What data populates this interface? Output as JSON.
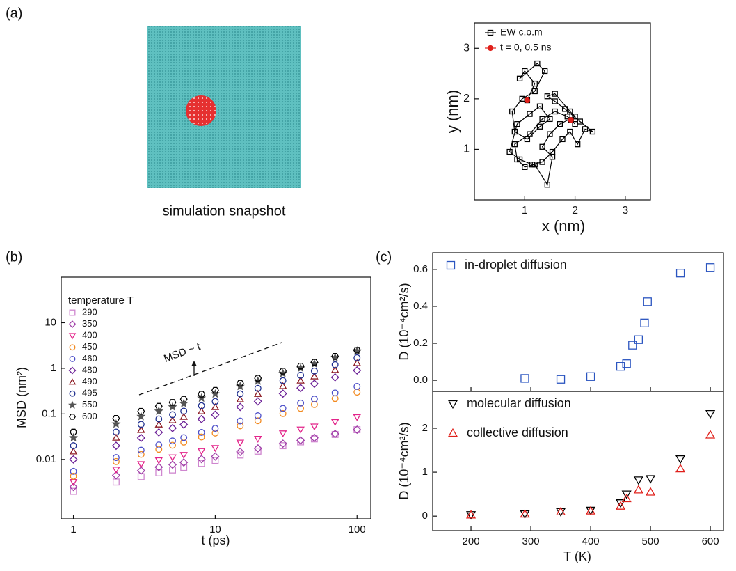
{
  "panel_labels": {
    "a": "(a)",
    "b": "(b)",
    "c": "(c)"
  },
  "snapshot_caption": "simulation snapshot",
  "chart_data": [
    {
      "type": "line",
      "xlabel": "x (nm)",
      "ylabel": "y (nm)",
      "xlim": [
        0,
        3.5
      ],
      "ylim": [
        0,
        3.5
      ],
      "xticks": [
        1,
        2,
        3
      ],
      "yticks": [
        1,
        2,
        3
      ],
      "series": [
        {
          "name": "EW c.o.m",
          "color": "#000000",
          "marker": "square",
          "line": true,
          "x": [
            1.05,
            1.2,
            1.0,
            0.9,
            1.25,
            1.4,
            1.2,
            0.95,
            0.75,
            0.8,
            1.05,
            1.3,
            1.5,
            1.3,
            1.1,
            0.85,
            0.7,
            0.9,
            1.15,
            1.35,
            1.55,
            1.75,
            1.9,
            2.05,
            2.2,
            2.35,
            2.1,
            1.8,
            1.6,
            1.45,
            1.6,
            1.9,
            2.0,
            1.7,
            1.5,
            1.35,
            1.55,
            1.45,
            1.2,
            1.0,
            0.85,
            0.8,
            1.1,
            1.35,
            1.6,
            1.85,
            2.0,
            1.92
          ],
          "values": [
            1.97,
            2.3,
            2.55,
            2.4,
            2.7,
            2.55,
            2.15,
            2.0,
            1.75,
            1.35,
            1.2,
            1.45,
            1.6,
            1.85,
            1.7,
            1.5,
            0.95,
            0.8,
            0.7,
            0.75,
            0.95,
            1.2,
            1.35,
            1.1,
            1.4,
            1.35,
            1.55,
            1.8,
            1.95,
            2.05,
            2.1,
            1.75,
            1.65,
            1.5,
            1.3,
            1.05,
            0.85,
            0.3,
            0.7,
            0.65,
            0.8,
            1.1,
            1.3,
            1.6,
            1.75,
            1.65,
            1.5,
            1.58
          ]
        },
        {
          "name": "t = 0, 0.5 ns",
          "color": "#e0201b",
          "marker": "dot",
          "line": false,
          "x": [
            1.05,
            1.92
          ],
          "values": [
            1.97,
            1.58
          ]
        }
      ]
    },
    {
      "type": "scatter",
      "xlabel": "t (ps)",
      "ylabel": "MSD (nm²)",
      "log_x": true,
      "log_y": true,
      "legend_title": "temperature T",
      "annotation": "MSD ~ t",
      "xlim": [
        0.82,
        125
      ],
      "ylim": [
        0.0005,
        100
      ],
      "xticks": [
        1,
        10,
        100
      ],
      "yticks": [
        0.01,
        0.1,
        1,
        10
      ],
      "x": [
        1,
        2,
        3,
        4,
        5,
        6,
        8,
        10,
        15,
        20,
        30,
        40,
        50,
        70,
        100
      ],
      "series": [
        {
          "name": "290",
          "color": "#cf86cf",
          "marker": "square",
          "values": [
            0.002,
            0.0032,
            0.0042,
            0.0051,
            0.0059,
            0.0067,
            0.0082,
            0.0095,
            0.0125,
            0.0152,
            0.02,
            0.0243,
            0.0282,
            0.0354,
            0.045
          ]
        },
        {
          "name": "350",
          "color": "#a040a8",
          "marker": "diamond",
          "values": [
            0.0025,
            0.0045,
            0.0057,
            0.0068,
            0.0077,
            0.0086,
            0.0102,
            0.0116,
            0.0147,
            0.0175,
            0.0222,
            0.0262,
            0.0299,
            0.0365,
            0.045
          ]
        },
        {
          "name": "400",
          "color": "#e3248a",
          "marker": "triangle-down",
          "values": [
            0.0032,
            0.006,
            0.0079,
            0.0096,
            0.0111,
            0.0126,
            0.0153,
            0.0178,
            0.0234,
            0.0284,
            0.0374,
            0.0455,
            0.0528,
            0.0664,
            0.085
          ]
        },
        {
          "name": "450",
          "color": "#f28a20",
          "marker": "circle",
          "values": [
            0.0043,
            0.009,
            0.0129,
            0.0167,
            0.0205,
            0.024,
            0.0311,
            0.038,
            0.0547,
            0.0708,
            0.102,
            0.132,
            0.161,
            0.217,
            0.3
          ]
        },
        {
          "name": "460",
          "color": "#4d4fc9",
          "marker": "circle",
          "values": [
            0.0055,
            0.011,
            0.016,
            0.0208,
            0.0255,
            0.0301,
            0.0393,
            0.0482,
            0.07,
            0.0912,
            0.132,
            0.173,
            0.212,
            0.288,
            0.4
          ]
        },
        {
          "name": "480",
          "color": "#6b1f96",
          "marker": "diamond",
          "values": [
            0.01,
            0.02,
            0.0297,
            0.0393,
            0.0488,
            0.0582,
            0.0771,
            0.0957,
            0.142,
            0.188,
            0.279,
            0.369,
            0.458,
            0.635,
            0.9
          ]
        },
        {
          "name": "490",
          "color": "#8c1a22",
          "marker": "triangle-up",
          "values": [
            0.015,
            0.03,
            0.0444,
            0.0585,
            0.0724,
            0.0863,
            0.114,
            0.141,
            0.209,
            0.275,
            0.407,
            0.537,
            0.665,
            0.92,
            1.3
          ]
        },
        {
          "name": "495",
          "color": "#1f2f8f",
          "marker": "circle",
          "values": [
            0.02,
            0.04,
            0.059,
            0.0776,
            0.0962,
            0.115,
            0.151,
            0.187,
            0.275,
            0.363,
            0.536,
            0.705,
            0.873,
            1.2,
            1.7
          ]
        },
        {
          "name": "550",
          "color": "#555555",
          "marker": "star",
          "values": [
            0.03,
            0.06,
            0.0879,
            0.115,
            0.142,
            0.169,
            0.222,
            0.274,
            0.401,
            0.526,
            0.771,
            1.01,
            1.25,
            1.71,
            2.4
          ]
        },
        {
          "name": "600",
          "color": "#000000",
          "marker": "hexagon",
          "values": [
            0.04,
            0.08,
            0.114,
            0.147,
            0.179,
            0.21,
            0.271,
            0.33,
            0.471,
            0.607,
            0.867,
            1.12,
            1.36,
            1.83,
            2.5
          ]
        }
      ]
    },
    {
      "type": "scatter",
      "ylabel": "D (10⁻⁴cm²/s)",
      "xlim": [
        136,
        622
      ],
      "ylim": [
        -0.06,
        0.69
      ],
      "xticks": [
        200,
        300,
        400,
        500,
        600
      ],
      "yticks": [
        {
          "value": 0,
          "label": "0.0"
        },
        0.2,
        0.4,
        0.6
      ],
      "x": [
        290,
        350,
        400,
        450,
        460,
        470,
        480,
        490,
        495,
        550,
        600
      ],
      "series": [
        {
          "name": "in-droplet diffusion",
          "color": "#2b55c0",
          "marker": "square",
          "values": [
            0.01,
            0.005,
            0.02,
            0.075,
            0.09,
            0.19,
            0.22,
            0.31,
            0.425,
            0.58,
            0.61
          ]
        }
      ]
    },
    {
      "type": "scatter",
      "xlabel": "T (K)",
      "ylabel": "D (10⁻⁴cm²/s)",
      "xlim": [
        136,
        622
      ],
      "ylim": [
        -0.33,
        2.84
      ],
      "xticks": [
        200,
        300,
        400,
        500,
        600
      ],
      "yticks": [
        0,
        1,
        2
      ],
      "x": [
        200,
        290,
        350,
        400,
        450,
        460,
        480,
        500,
        550,
        600
      ],
      "series": [
        {
          "name": "molecular diffusion",
          "color": "#000000",
          "marker": "triangle-down",
          "values": [
            0.03,
            0.05,
            0.1,
            0.13,
            0.3,
            0.5,
            0.82,
            0.85,
            1.3,
            2.33
          ]
        },
        {
          "name": "collective diffusion",
          "color": "#e0201b",
          "marker": "triangle-up",
          "values": [
            0.03,
            0.05,
            0.1,
            0.12,
            0.23,
            0.4,
            0.6,
            0.55,
            1.08,
            1.85
          ]
        }
      ]
    }
  ]
}
